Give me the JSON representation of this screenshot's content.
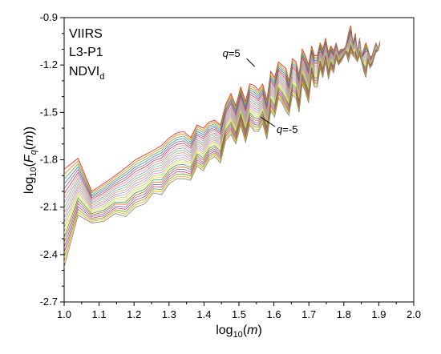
{
  "chart_data": {
    "type": "line",
    "inset_lines": [
      "VIIRS",
      "L3-P1",
      "NDVI",
      "d"
    ],
    "xlabel": {
      "prefix": "log",
      "sub": "10",
      "var": "m"
    },
    "ylabel": {
      "prefix": "log",
      "sub": "10",
      "F": "F",
      "q": "q",
      "m": "m"
    },
    "xlim": [
      1.0,
      2.0
    ],
    "ylim": [
      -2.7,
      -0.9
    ],
    "x_ticks": [
      "1.0",
      "1.1",
      "1.2",
      "1.3",
      "1.4",
      "1.5",
      "1.6",
      "1.7",
      "1.8",
      "1.9",
      "2.0"
    ],
    "y_ticks": [
      "-2.7",
      "-2.4",
      "-2.1",
      "-1.8",
      "-1.5",
      "-1.2",
      "-0.9"
    ],
    "annotations": [
      {
        "q": "q",
        "text": "=5",
        "x": 1.545,
        "y": -1.21
      },
      {
        "q": "q",
        "text": "=-5",
        "x": 1.585,
        "y": -1.58
      }
    ],
    "x": [
      1.0,
      1.04,
      1.079,
      1.114,
      1.146,
      1.176,
      1.204,
      1.23,
      1.255,
      1.279,
      1.301,
      1.322,
      1.342,
      1.362,
      1.38,
      1.398,
      1.415,
      1.431,
      1.447,
      1.462,
      1.477,
      1.491,
      1.505,
      1.519,
      1.531,
      1.544,
      1.556,
      1.568,
      1.58,
      1.591,
      1.602,
      1.613,
      1.623,
      1.634,
      1.643,
      1.653,
      1.663,
      1.672,
      1.681,
      1.69,
      1.699,
      1.708,
      1.716,
      1.724,
      1.732,
      1.74,
      1.748,
      1.756,
      1.763,
      1.771,
      1.778,
      1.785,
      1.792,
      1.799,
      1.806,
      1.813,
      1.82,
      1.826,
      1.833,
      1.839,
      1.845,
      1.851,
      1.857,
      1.863,
      1.869,
      1.875,
      1.881,
      1.886,
      1.892,
      1.898,
      1.903
    ],
    "series_top": [
      -1.86,
      -1.79,
      -2.0,
      -1.95,
      -1.9,
      -1.85,
      -1.8,
      -1.77,
      -1.74,
      -1.71,
      -1.66,
      -1.63,
      -1.62,
      -1.66,
      -1.58,
      -1.6,
      -1.56,
      -1.55,
      -1.58,
      -1.45,
      -1.38,
      -1.46,
      -1.34,
      -1.43,
      -1.32,
      -1.33,
      -1.36,
      -1.32,
      -1.42,
      -1.24,
      -1.28,
      -1.18,
      -1.2,
      -1.22,
      -1.3,
      -1.16,
      -1.18,
      -1.26,
      -1.1,
      -1.14,
      -1.2,
      -1.08,
      -1.14,
      -1.14,
      -1.06,
      -1.1,
      -1.03,
      -1.12,
      -1.08,
      -1.11,
      -1.06,
      -1.12,
      -1.1,
      -1.1,
      -1.08,
      -1.0,
      -0.95,
      -1.06,
      -1.0,
      -1.12,
      -1.03,
      -1.14,
      -1.1,
      -1.06,
      -1.1,
      -1.15,
      -1.14,
      -1.1,
      -1.06,
      -1.1,
      -1.05
    ],
    "series_bottom": [
      -2.48,
      -2.15,
      -2.2,
      -2.19,
      -2.14,
      -2.16,
      -2.1,
      -2.08,
      -2.01,
      -2.02,
      -1.95,
      -1.92,
      -1.92,
      -1.93,
      -1.84,
      -1.87,
      -1.8,
      -1.78,
      -1.82,
      -1.68,
      -1.64,
      -1.7,
      -1.58,
      -1.69,
      -1.58,
      -1.62,
      -1.62,
      -1.57,
      -1.67,
      -1.49,
      -1.53,
      -1.41,
      -1.44,
      -1.49,
      -1.52,
      -1.39,
      -1.41,
      -1.5,
      -1.32,
      -1.37,
      -1.44,
      -1.27,
      -1.34,
      -1.34,
      -1.22,
      -1.28,
      -1.18,
      -1.29,
      -1.22,
      -1.25,
      -1.16,
      -1.2,
      -1.18,
      -1.15,
      -1.12,
      -1.18,
      -1.12,
      -1.14,
      -1.16,
      -1.18,
      -1.14,
      -1.18,
      -1.24,
      -1.28,
      -1.18,
      -1.22,
      -1.2,
      -1.16,
      -1.12,
      -1.11,
      -1.07
    ],
    "n_series": 21,
    "palette": [
      "#e41a1c",
      "#ff7f00",
      "#4daf4a",
      "#377eb8",
      "#984ea3",
      "#a65628",
      "#f781bf",
      "#999999",
      "#66c2a5",
      "#fc8d62",
      "#8da0cb",
      "#e78ac3",
      "#a6d854",
      "#ffd92f",
      "#1b9e77",
      "#d95f02",
      "#7570b3",
      "#e7298a",
      "#66a61e",
      "#e6ab02",
      "#7f7f7f"
    ]
  }
}
